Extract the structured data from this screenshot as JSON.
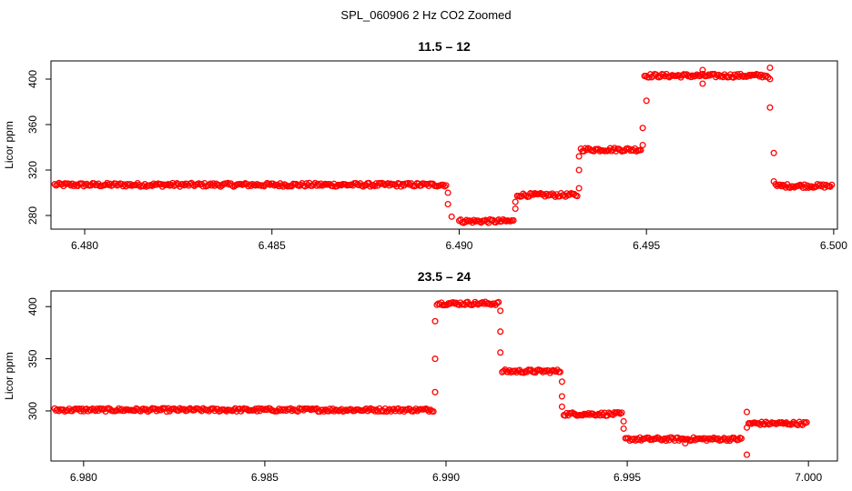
{
  "page": {
    "title": "SPL_060906 2 Hz CO2 Zoomed"
  },
  "chart_data": [
    {
      "type": "scatter",
      "title": "11.5 – 12",
      "xlabel": "",
      "ylabel": "Licor ppm",
      "xlim": [
        6.4791,
        6.5001
      ],
      "ylim": [
        268,
        416
      ],
      "xticks": [
        "6.480",
        "6.485",
        "6.490",
        "6.495",
        "6.500"
      ],
      "xtick_values": [
        6.48,
        6.485,
        6.49,
        6.495,
        6.5
      ],
      "yticks": [
        "280",
        "320",
        "360",
        "400"
      ],
      "ytick_values": [
        280,
        320,
        360,
        400
      ],
      "marker": "open-circle",
      "color": "#ff0000",
      "segments": [
        {
          "x_start": 6.4792,
          "x_end": 6.48965,
          "level": 307
        },
        {
          "x_start": 6.49,
          "x_end": 6.49145,
          "level": 275
        },
        {
          "x_start": 6.49155,
          "x_end": 6.49315,
          "level": 298
        },
        {
          "x_start": 6.49325,
          "x_end": 6.49485,
          "level": 338
        },
        {
          "x_start": 6.49495,
          "x_end": 6.49825,
          "level": 403
        },
        {
          "x_start": 6.49845,
          "x_end": 6.49995,
          "level": 306
        }
      ],
      "transitions": [
        {
          "x": 6.4897,
          "y": 300
        },
        {
          "x": 6.4897,
          "y": 290
        },
        {
          "x": 6.4898,
          "y": 279
        },
        {
          "x": 6.4915,
          "y": 286
        },
        {
          "x": 6.4915,
          "y": 292
        },
        {
          "x": 6.4932,
          "y": 304
        },
        {
          "x": 6.4932,
          "y": 320
        },
        {
          "x": 6.4932,
          "y": 332
        },
        {
          "x": 6.4949,
          "y": 342
        },
        {
          "x": 6.4949,
          "y": 357
        },
        {
          "x": 6.495,
          "y": 381
        },
        {
          "x": 6.4983,
          "y": 410
        },
        {
          "x": 6.4983,
          "y": 400
        },
        {
          "x": 6.4983,
          "y": 375
        },
        {
          "x": 6.4984,
          "y": 335
        },
        {
          "x": 6.4984,
          "y": 310
        },
        {
          "x": 6.4965,
          "y": 396
        },
        {
          "x": 6.4965,
          "y": 408
        }
      ]
    },
    {
      "type": "scatter",
      "title": "23.5 – 24",
      "xlabel": "",
      "ylabel": "Licor ppm",
      "xlim": [
        6.9791,
        7.0008
      ],
      "ylim": [
        252,
        415
      ],
      "xticks": [
        "6.980",
        "6.985",
        "6.990",
        "6.995",
        "7.000"
      ],
      "xtick_values": [
        6.98,
        6.985,
        6.99,
        6.995,
        7.0
      ],
      "yticks": [
        "300",
        "350",
        "400"
      ],
      "ytick_values": [
        300,
        350,
        400
      ],
      "marker": "open-circle",
      "color": "#ff0000",
      "segments": [
        {
          "x_start": 6.9792,
          "x_end": 6.98965,
          "level": 301
        },
        {
          "x_start": 6.98975,
          "x_end": 6.99145,
          "level": 403
        },
        {
          "x_start": 6.99155,
          "x_end": 6.99315,
          "level": 338
        },
        {
          "x_start": 6.99325,
          "x_end": 6.99485,
          "level": 297
        },
        {
          "x_start": 6.99495,
          "x_end": 6.99815,
          "level": 273
        },
        {
          "x_start": 6.99835,
          "x_end": 6.99995,
          "level": 288
        }
      ],
      "transitions": [
        {
          "x": 6.9897,
          "y": 318
        },
        {
          "x": 6.9897,
          "y": 350
        },
        {
          "x": 6.9897,
          "y": 386
        },
        {
          "x": 6.9915,
          "y": 396
        },
        {
          "x": 6.9915,
          "y": 376
        },
        {
          "x": 6.9915,
          "y": 356
        },
        {
          "x": 6.9932,
          "y": 328
        },
        {
          "x": 6.9932,
          "y": 314
        },
        {
          "x": 6.9932,
          "y": 304
        },
        {
          "x": 6.9949,
          "y": 290
        },
        {
          "x": 6.9949,
          "y": 283
        },
        {
          "x": 6.9983,
          "y": 258
        },
        {
          "x": 6.9983,
          "y": 299
        },
        {
          "x": 6.9983,
          "y": 284
        },
        {
          "x": 6.9966,
          "y": 269
        }
      ]
    }
  ]
}
